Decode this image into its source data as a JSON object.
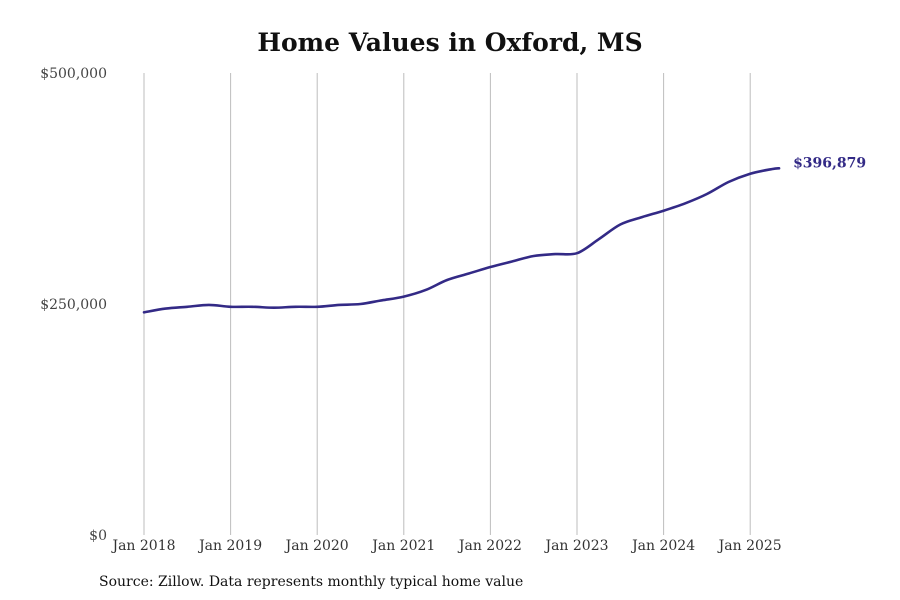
{
  "title": "Home Values in Oxford, MS",
  "source": "Source: Zillow. Data represents monthly typical home value",
  "colors": {
    "line": "#332a86",
    "grid": "#bdbdbd",
    "axis_text": "#444444"
  },
  "chart_data": {
    "type": "line",
    "title": "Home Values in Oxford, MS",
    "xlabel": "",
    "ylabel": "",
    "ylim": [
      0,
      500000
    ],
    "xlim": [
      "Jan 2018",
      "Jul 2025"
    ],
    "grid": "vertical",
    "legend": "none",
    "y_ticks": [
      {
        "value": 0,
        "label": "$0"
      },
      {
        "value": 250000,
        "label": "$250,000"
      },
      {
        "value": 500000,
        "label": "$500,000"
      }
    ],
    "x_ticks": [
      "Jan 2018",
      "Jan 2019",
      "Jan 2020",
      "Jan 2021",
      "Jan 2022",
      "Jan 2023",
      "Jan 2024",
      "Jan 2025"
    ],
    "end_label": "$396,879",
    "series": [
      {
        "x": [
          "2018-01",
          "2018-04",
          "2018-07",
          "2018-10",
          "2019-01",
          "2019-04",
          "2019-07",
          "2019-10",
          "2020-01",
          "2020-04",
          "2020-07",
          "2020-10",
          "2021-01",
          "2021-04",
          "2021-07",
          "2021-10",
          "2022-01",
          "2022-04",
          "2022-07",
          "2022-10",
          "2023-01",
          "2023-04",
          "2023-07",
          "2023-10",
          "2024-01",
          "2024-04",
          "2024-07",
          "2024-10",
          "2025-01",
          "2025-04",
          "2025-05"
        ],
        "values": [
          241000,
          245000,
          247000,
          249000,
          247000,
          247000,
          246000,
          247000,
          247000,
          249000,
          250000,
          254000,
          258000,
          265000,
          276000,
          283000,
          290000,
          296000,
          302000,
          304000,
          305000,
          320000,
          336000,
          344000,
          351000,
          359000,
          369000,
          382000,
          391000,
          396000,
          396879
        ]
      }
    ]
  }
}
